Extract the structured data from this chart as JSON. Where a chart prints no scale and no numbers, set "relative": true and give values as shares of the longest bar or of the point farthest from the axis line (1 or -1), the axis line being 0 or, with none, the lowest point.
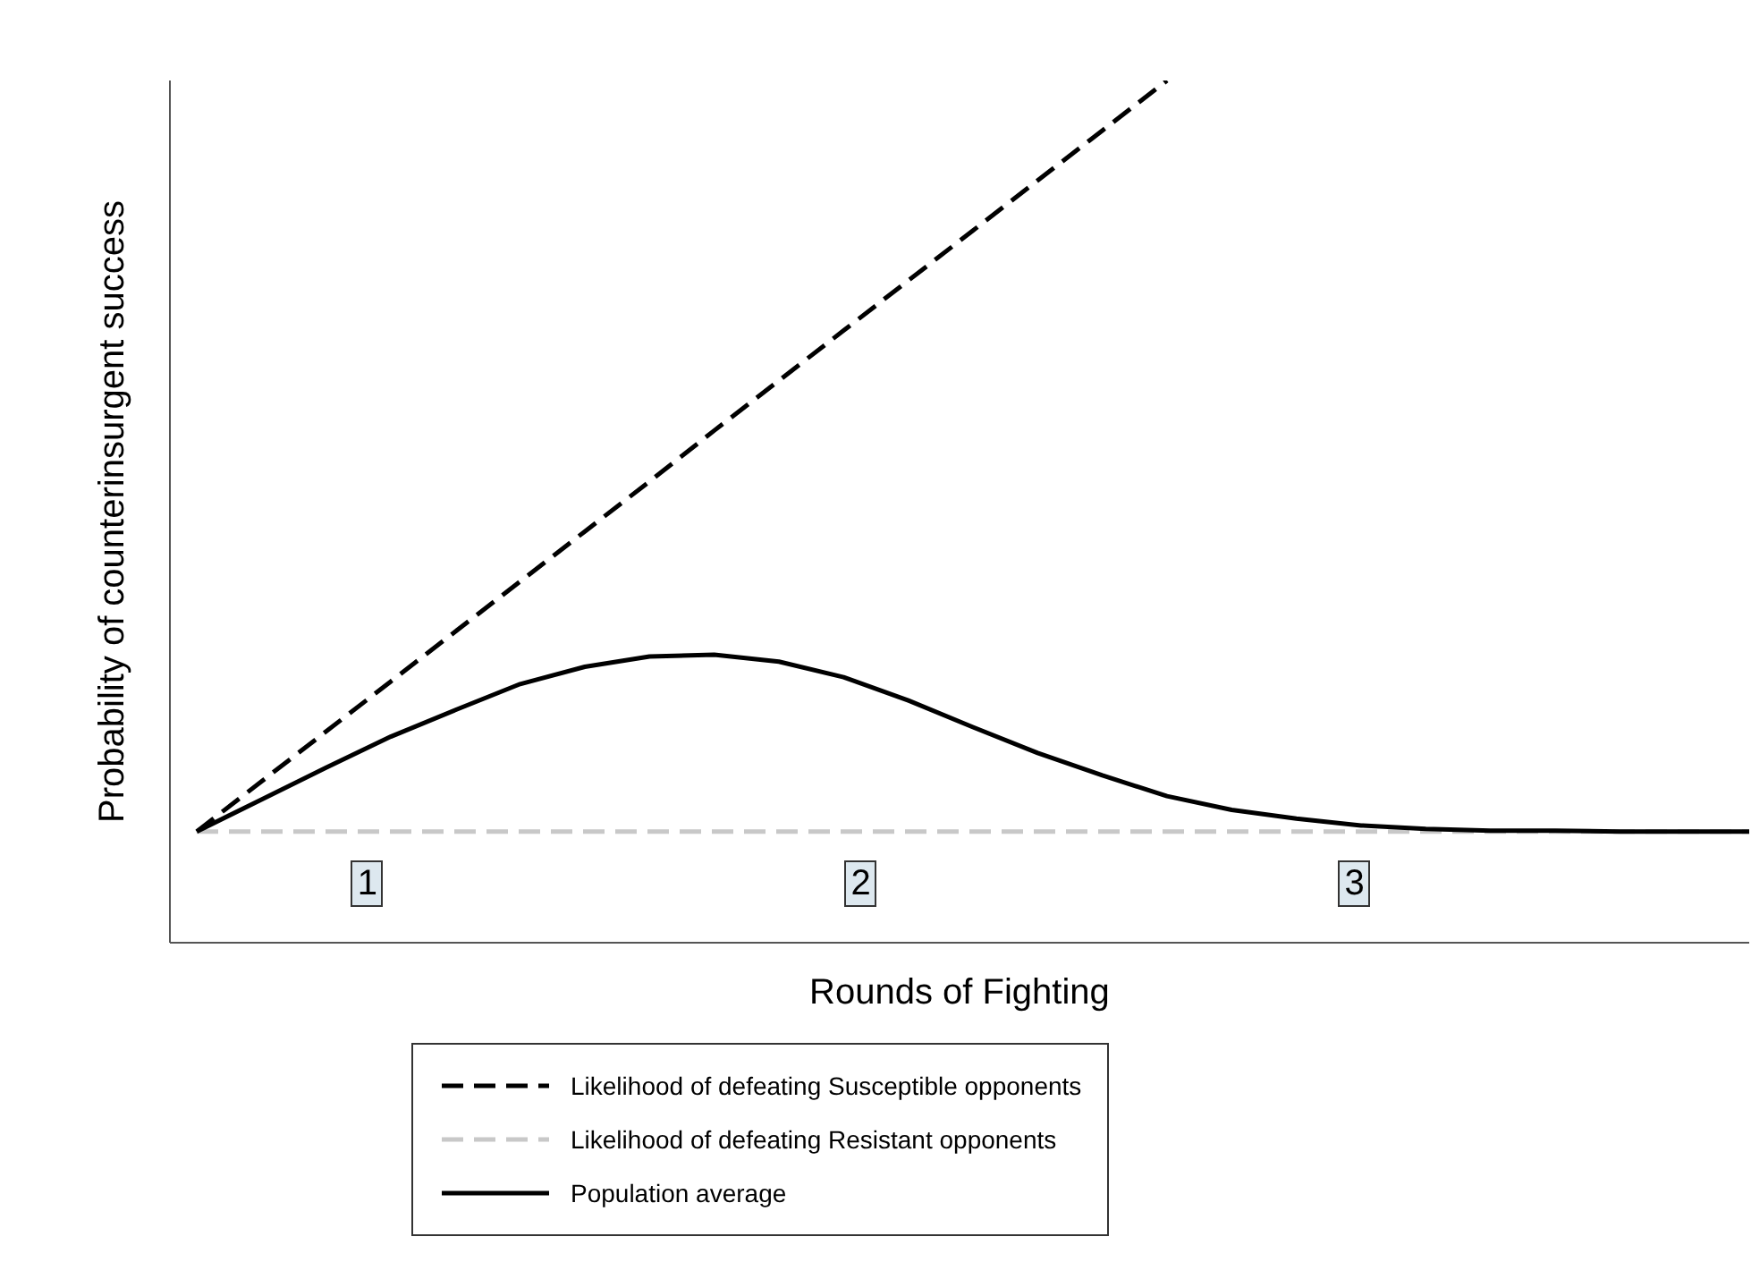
{
  "chart_data": {
    "type": "line",
    "relative": true,
    "xlabel": "Rounds of Fighting",
    "ylabel": "Probability of counterinsurgent success",
    "legend": "bottom",
    "grid": false,
    "marker": "none",
    "categories": [
      null,
      null,
      null,
      null,
      null,
      null,
      null,
      null,
      null,
      null,
      null,
      null,
      null,
      null,
      null,
      null,
      null,
      null,
      null,
      null,
      null,
      null,
      null,
      null,
      null
    ],
    "series": [
      {
        "name": "Likelihood of defeating Susceptible opponents",
        "color": "#000000",
        "line_style": "dashed",
        "values": [
          0.129,
          0.187,
          0.245,
          0.303,
          0.361,
          0.419,
          0.477,
          0.535,
          0.594,
          0.652,
          0.71,
          0.768,
          0.826,
          0.884,
          0.942,
          1,
          null,
          null,
          null,
          null,
          null,
          null,
          null,
          null,
          null
        ]
      },
      {
        "name": "Likelihood of defeating Resistant opponents",
        "color": "#c8c8c8",
        "line_style": "dashed",
        "values": [
          0.129,
          0.129,
          0.129,
          0.129,
          0.129,
          0.129,
          0.129,
          0.129,
          0.129,
          0.129,
          0.129,
          0.129,
          0.129,
          0.129,
          0.129,
          0.129,
          0.129,
          0.129,
          0.129,
          0.129,
          0.129,
          0.129,
          0.129,
          0.129,
          0.129
        ]
      },
      {
        "name": "Population average",
        "color": "#000000",
        "line_style": "solid",
        "values": [
          0.129,
          0.166,
          0.203,
          0.239,
          0.27,
          0.3,
          0.32,
          0.332,
          0.334,
          0.326,
          0.308,
          0.281,
          0.25,
          0.22,
          0.194,
          0.17,
          0.154,
          0.144,
          0.136,
          0.132,
          0.13,
          0.13,
          0.129,
          0.129,
          0.129
        ]
      }
    ],
    "annotations": [
      "1",
      "2",
      "3"
    ]
  }
}
